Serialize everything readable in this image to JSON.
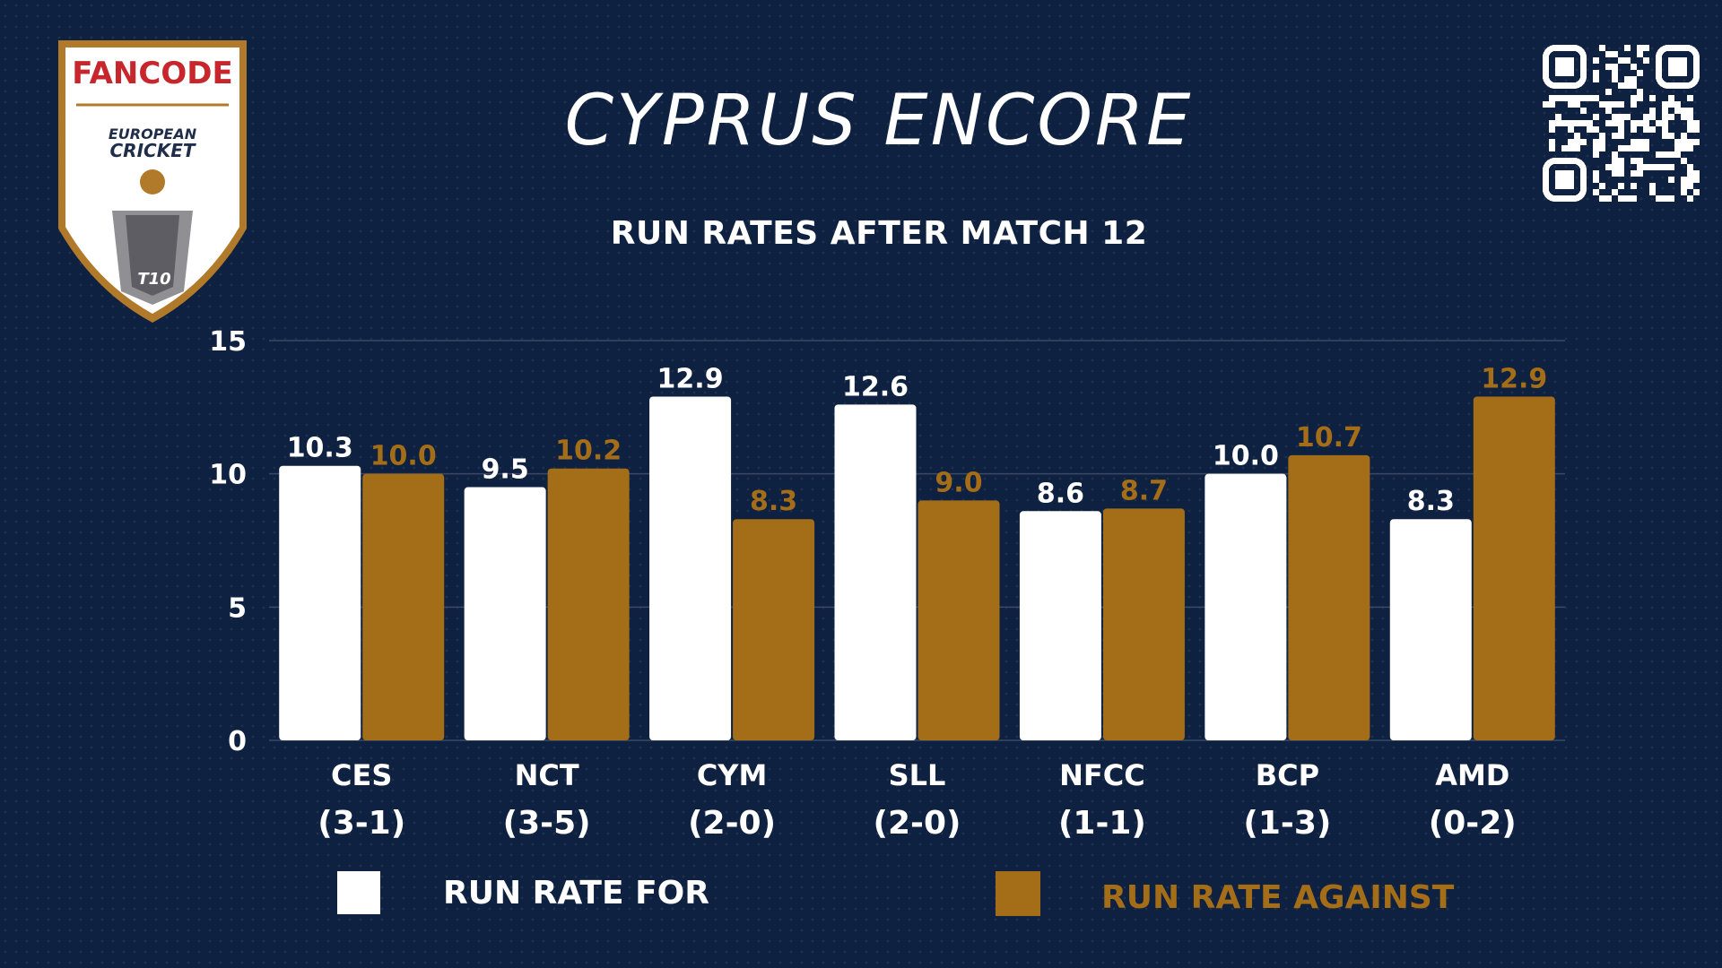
{
  "header": {
    "title": "CYPRUS ENCORE",
    "subtitle": "RUN RATES AFTER MATCH 12"
  },
  "logo": {
    "brand": "FANCODE",
    "line1": "EUROPEAN",
    "line2": "CRICKET",
    "badge": "T10"
  },
  "qr_icon": "qr-code-icon",
  "colors": {
    "background": "#0f2140",
    "for": "#ffffff",
    "against": "#a46d17",
    "grid": "#3a4a66"
  },
  "chart_data": {
    "type": "bar",
    "title": "RUN RATES AFTER MATCH 12",
    "categories": [
      "CES",
      "NCT",
      "CYM",
      "SLL",
      "NFCC",
      "BCP",
      "AMD"
    ],
    "records": [
      "(3-1)",
      "(3-5)",
      "(2-0)",
      "(2-0)",
      "(1-1)",
      "(1-3)",
      "(0-2)"
    ],
    "series": [
      {
        "name": "RUN RATE FOR",
        "values": [
          10.3,
          9.5,
          12.9,
          12.6,
          8.6,
          10.0,
          8.3
        ]
      },
      {
        "name": "RUN RATE AGAINST",
        "values": [
          10.0,
          10.2,
          8.3,
          9.0,
          8.7,
          10.7,
          12.9
        ]
      }
    ],
    "ylim": [
      0,
      15
    ],
    "yticks": [
      0,
      5,
      10,
      15
    ],
    "grid": true,
    "legend": "bottom"
  }
}
